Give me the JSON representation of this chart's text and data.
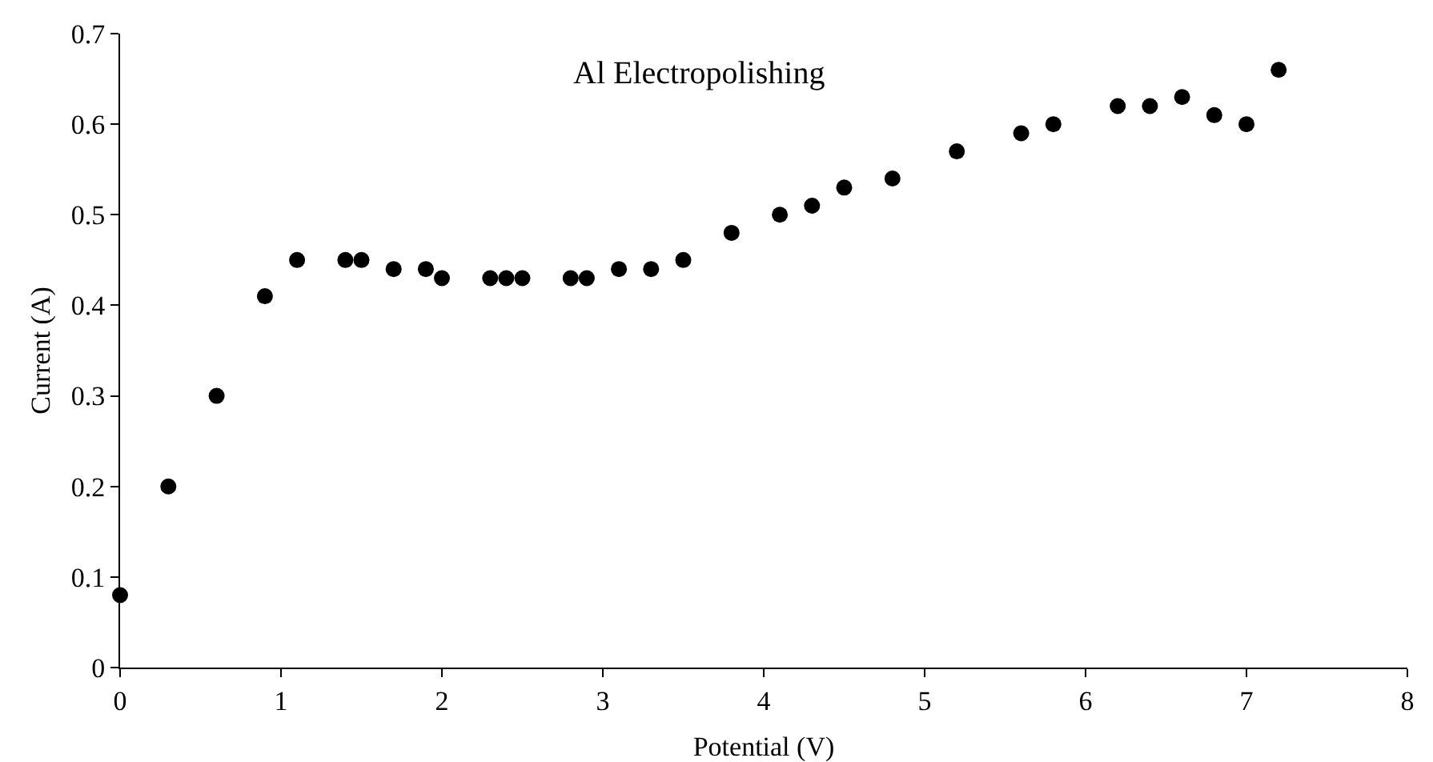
{
  "chart_data": {
    "type": "scatter",
    "xlabel": "Potential (V)",
    "ylabel": "Current (A)",
    "annotations": [
      "Al Electropolishing"
    ],
    "x": [
      0,
      0.3,
      0.6,
      0.9,
      1.1,
      1.4,
      1.5,
      1.7,
      1.9,
      2.0,
      2.3,
      2.4,
      2.5,
      2.8,
      2.9,
      3.1,
      3.3,
      3.5,
      3.8,
      4.1,
      4.3,
      4.5,
      4.8,
      5.2,
      5.6,
      5.8,
      6.2,
      6.4,
      6.6,
      6.8,
      7.0,
      7.2
    ],
    "series": [
      {
        "color": "#000000",
        "values": [
          0.08,
          0.2,
          0.3,
          0.41,
          0.45,
          0.45,
          0.45,
          0.44,
          0.44,
          0.43,
          0.43,
          0.43,
          0.43,
          0.43,
          0.43,
          0.44,
          0.44,
          0.45,
          0.48,
          0.5,
          0.51,
          0.53,
          0.54,
          0.57,
          0.59,
          0.6,
          0.62,
          0.62,
          0.63,
          0.61,
          0.6,
          0.66
        ]
      }
    ],
    "xlim": [
      0,
      8
    ],
    "xticks": [
      0,
      1,
      2,
      3,
      4,
      5,
      6,
      7,
      8
    ],
    "ylim": [
      0,
      0.7
    ],
    "yticks": [
      0,
      0.1,
      0.2,
      0.3,
      0.4,
      0.5,
      0.6,
      0.7
    ],
    "marker": "circle"
  }
}
